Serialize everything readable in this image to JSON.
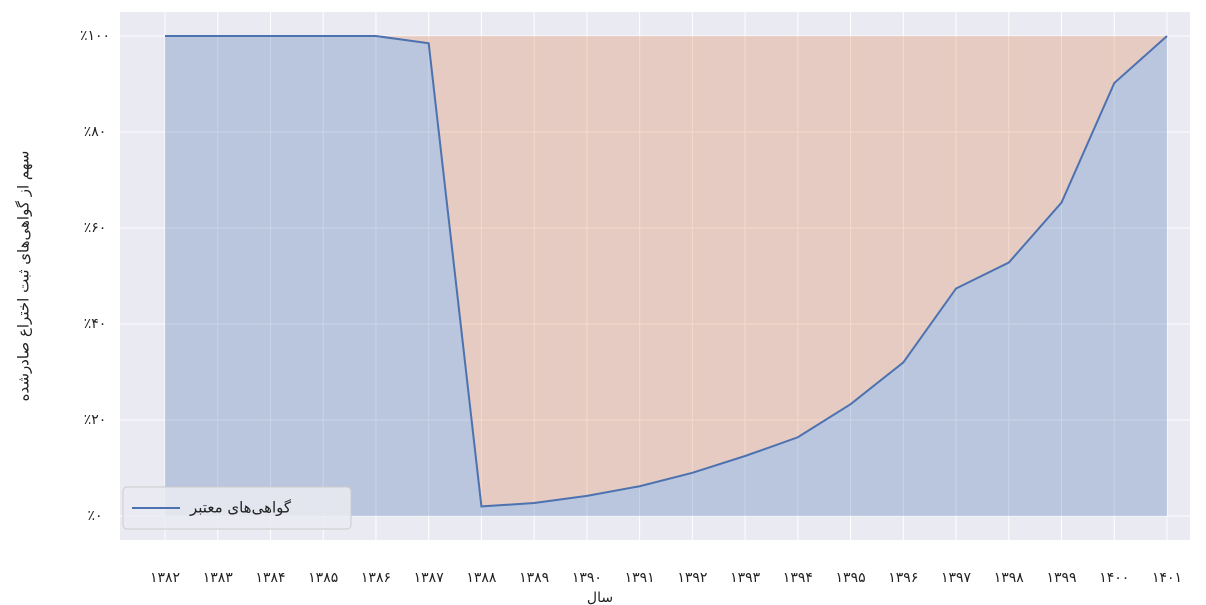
{
  "chart_data": {
    "type": "area",
    "xlabel": "سال",
    "ylabel": "سهم از گواهی‌های ثبت اختراع صادرشده",
    "categories": [
      "۱۳۸۲",
      "۱۳۸۳",
      "۱۳۸۴",
      "۱۳۸۵",
      "۱۳۸۶",
      "۱۳۸۷",
      "۱۳۸۸",
      "۱۳۸۹",
      "۱۳۹۰",
      "۱۳۹۱",
      "۱۳۹۲",
      "۱۳۹۳",
      "۱۳۹۴",
      "۱۳۹۵",
      "۱۳۹۶",
      "۱۳۹۷",
      "۱۳۹۸",
      "۱۳۹۹",
      "۱۴۰۰",
      "۱۴۰۱"
    ],
    "series": [
      {
        "name": "گواهی‌های معتبر",
        "color": "#4c72b0",
        "values": [
          100,
          100,
          100,
          100,
          100,
          98.5,
          2,
          2.7,
          4.2,
          6.2,
          9,
          12.5,
          16.4,
          23.3,
          32,
          47.4,
          52.8,
          65.3,
          90.2,
          100
        ]
      }
    ],
    "complement_color": "#dd8452",
    "ylim": [
      -5,
      105
    ],
    "yticks": [
      {
        "value": 0,
        "label": "٪۰"
      },
      {
        "value": 20,
        "label": "٪۲۰"
      },
      {
        "value": 40,
        "label": "٪۴۰"
      },
      {
        "value": 60,
        "label": "٪۶۰"
      },
      {
        "value": 80,
        "label": "٪۸۰"
      },
      {
        "value": 100,
        "label": "٪۱۰۰"
      }
    ],
    "grid": true,
    "legend": "lower left"
  }
}
